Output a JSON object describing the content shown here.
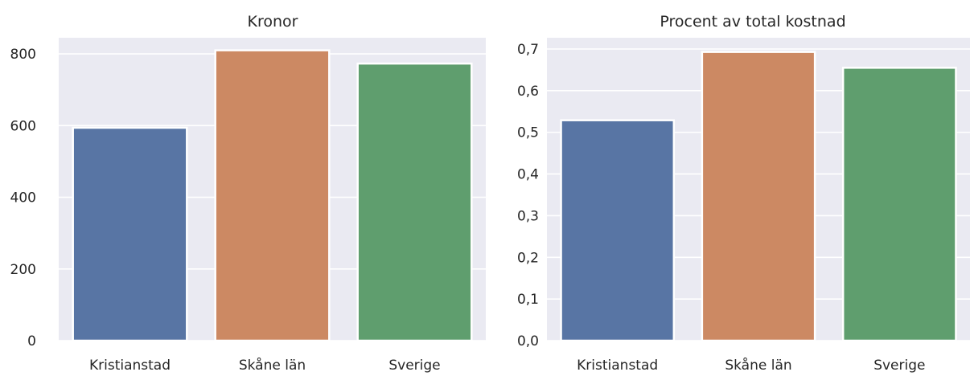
{
  "chart_data": [
    {
      "type": "bar",
      "title": "Kronor",
      "categories": [
        "Kristianstad",
        "Skåne län",
        "Sverige"
      ],
      "values": [
        594,
        810,
        773
      ],
      "colors": [
        "#5875a4",
        "#cc8963",
        "#5f9e6e"
      ],
      "ylim": [
        0,
        845
      ],
      "yticks": [
        0,
        200,
        400,
        600,
        800
      ],
      "ytick_labels": [
        "0",
        "200",
        "400",
        "600",
        "800"
      ],
      "xlabel": "",
      "ylabel": "",
      "grid": true
    },
    {
      "type": "bar",
      "title": "Procent av total kostnad",
      "categories": [
        "Kristianstad",
        "Skåne län",
        "Sverige"
      ],
      "values": [
        0.529,
        0.693,
        0.655
      ],
      "colors": [
        "#5875a4",
        "#cc8963",
        "#5f9e6e"
      ],
      "ylim": [
        0,
        0.727
      ],
      "yticks": [
        0.0,
        0.1,
        0.2,
        0.3,
        0.4,
        0.5,
        0.6,
        0.7
      ],
      "ytick_labels": [
        "0,0",
        "0,1",
        "0,2",
        "0,3",
        "0,4",
        "0,5",
        "0,6",
        "0,7"
      ],
      "xlabel": "",
      "ylabel": "",
      "grid": true
    }
  ]
}
